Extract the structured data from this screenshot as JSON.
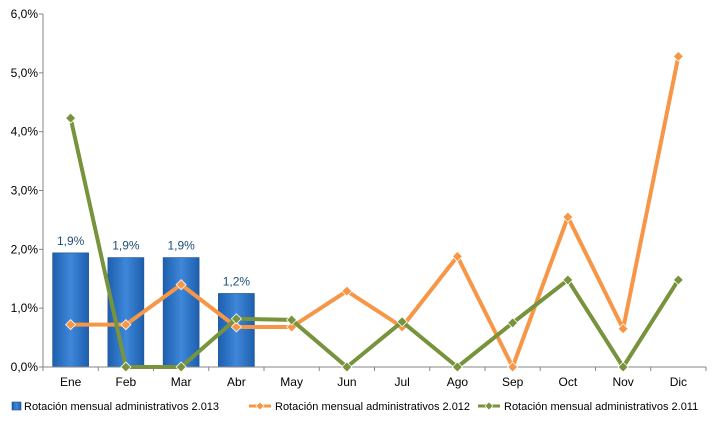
{
  "chart_data": {
    "type": "bar",
    "categories": [
      "Ene",
      "Feb",
      "Mar",
      "Abr",
      "May",
      "Jun",
      "Jul",
      "Ago",
      "Sep",
      "Oct",
      "Nov",
      "Dic"
    ],
    "ylim": [
      0,
      6
    ],
    "yticks": [
      "0,0%",
      "1,0%",
      "2,0%",
      "3,0%",
      "4,0%",
      "5,0%",
      "6,0%"
    ],
    "grid": false,
    "legend_position": "bottom",
    "series": [
      {
        "name": "Rotación mensual administrativos 2.013",
        "type": "bar",
        "color": "#2e75c8",
        "values": [
          1.94,
          1.86,
          1.86,
          1.25,
          null,
          null,
          null,
          null,
          null,
          null,
          null,
          null
        ],
        "data_labels": [
          "1,9%",
          "1,9%",
          "1,9%",
          "1,2%"
        ]
      },
      {
        "name": "Rotación mensual administrativos 2.012",
        "type": "line",
        "color": "#f79646",
        "values": [
          0.72,
          0.72,
          1.4,
          0.68,
          0.68,
          1.29,
          0.68,
          1.88,
          0.0,
          2.55,
          0.65,
          5.28
        ]
      },
      {
        "name": "Rotación mensual administrativos 2.011",
        "type": "line",
        "color": "#77933c",
        "values": [
          4.23,
          0.0,
          0.0,
          0.82,
          0.8,
          0.0,
          0.77,
          0.0,
          0.75,
          1.48,
          0.0,
          1.48
        ]
      }
    ]
  }
}
